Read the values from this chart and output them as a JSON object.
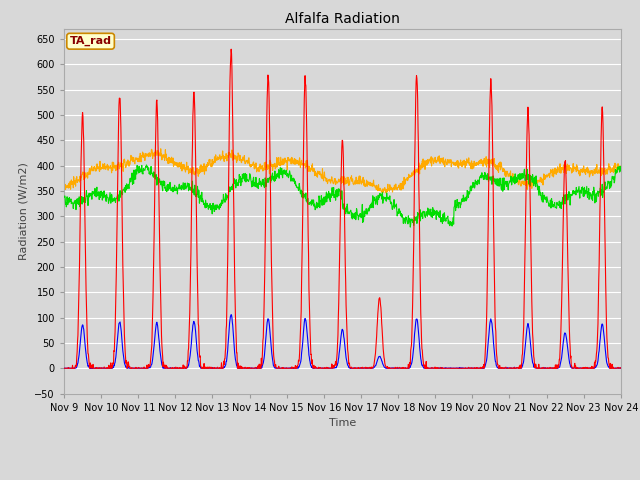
{
  "title": "Alfalfa Radiation",
  "ylabel": "Radiation (W/m2)",
  "xlabel": "Time",
  "ylim": [
    -50,
    670
  ],
  "yticks": [
    -50,
    0,
    50,
    100,
    150,
    200,
    250,
    300,
    350,
    400,
    450,
    500,
    550,
    600,
    650
  ],
  "bg_color": "#d8d8d8",
  "plot_bg_color": "#d8d8d8",
  "grid_color": "white",
  "series_colors": {
    "SWin": "#ff0000",
    "SWout": "#0000ff",
    "LWin": "#00dd00",
    "LWout": "#ffaa00"
  },
  "annotation_text": "TA_rad",
  "annotation_bg": "#ffffcc",
  "annotation_border": "#cc8800",
  "annotation_text_color": "#880000",
  "n_days": 15,
  "SWin_peaks": [
    500,
    540,
    520,
    545,
    630,
    575,
    575,
    450,
    140,
    575,
    0,
    570,
    505,
    410,
    510
  ],
  "SWout_ratio": 0.17,
  "LWin_base": 355,
  "LWout_base": 375
}
